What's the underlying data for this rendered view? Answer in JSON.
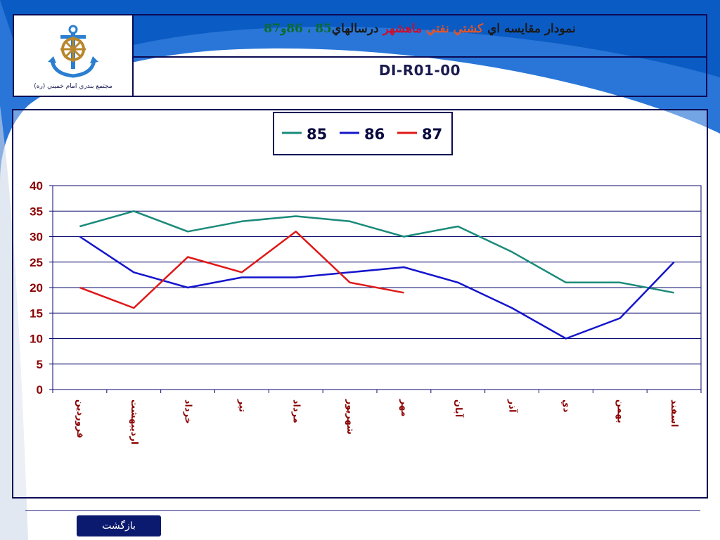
{
  "header": {
    "title_parts": {
      "p1": "نمودار مقايسه اي ",
      "p2": "كشتي نفتي",
      "p3": " ماهشهر ",
      "p4": "درسالهاي",
      "p5": "85 ، 86و87"
    },
    "code": "DI-R01-00",
    "logo_caption": "مجتمع بندري امام خميني (ره)"
  },
  "footer": {
    "back_label": "بازگشت"
  },
  "colors": {
    "accent_blue": "#1d6fd6",
    "dark_navy": "#0a0a55",
    "grid_line": "#0a0a6e",
    "axis_label": "#8b0000",
    "series_85": "#1a8a7a",
    "series_86": "#1414cc",
    "series_87": "#e01818"
  },
  "chart_data": {
    "type": "line",
    "title": "",
    "xlabel": "",
    "ylabel": "",
    "ylim": [
      0,
      40
    ],
    "yticks": [
      "0",
      "5",
      "10",
      "15",
      "20",
      "25",
      "30",
      "35",
      "40"
    ],
    "categories": [
      "فروردين",
      "ارديبهشت",
      "خرداد",
      "تير",
      "مرداد",
      "شهريور",
      "مهر",
      "آبان",
      "آذر",
      "دي",
      "بهمن",
      "اسفند"
    ],
    "legend_position": "top-center",
    "grid": true,
    "series": [
      {
        "name": "85",
        "color": "#1a8a7a",
        "values": [
          32,
          35,
          31,
          33,
          34,
          33,
          30,
          32,
          27,
          21,
          21,
          19
        ]
      },
      {
        "name": "86",
        "color": "#1414cc",
        "values": [
          30,
          23,
          20,
          22,
          22,
          23,
          24,
          21,
          16,
          10,
          14,
          25
        ]
      },
      {
        "name": "87",
        "color": "#e01818",
        "values": [
          20,
          16,
          26,
          23,
          31,
          21,
          19,
          null,
          null,
          null,
          null,
          null
        ]
      }
    ]
  }
}
